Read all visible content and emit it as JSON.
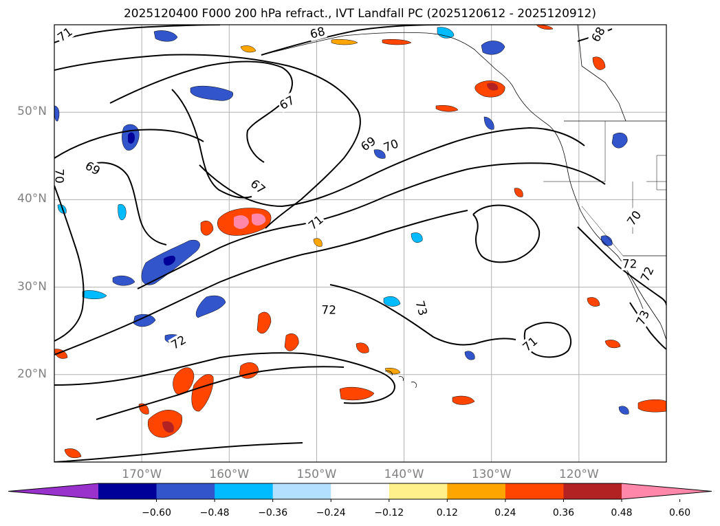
{
  "title": "2025120400 F000 200 hPa refract., IVT Landfall PC (2025120612 - 2025120912)",
  "map": {
    "lon_range": [
      -180,
      -110
    ],
    "lat_range": [
      10,
      60
    ],
    "gridline_color": "#b0b0b0",
    "coastline_color": "#000000"
  },
  "axes": {
    "lat_ticks": [
      {
        "lat": 50,
        "label": "50°N"
      },
      {
        "lat": 40,
        "label": "40°N"
      },
      {
        "lat": 30,
        "label": "30°N"
      },
      {
        "lat": 20,
        "label": "20°N"
      }
    ],
    "lon_ticks": [
      {
        "lon": -170,
        "label": "170°W"
      },
      {
        "lon": -160,
        "label": "160°W"
      },
      {
        "lon": -150,
        "label": "150°W"
      },
      {
        "lon": -140,
        "label": "140°W"
      },
      {
        "lon": -130,
        "label": "130°W"
      },
      {
        "lon": -120,
        "label": "120°W"
      }
    ]
  },
  "contour_labels": [
    {
      "text": "71",
      "lon": -178.8,
      "lat": 58.9,
      "rot": -35
    },
    {
      "text": "68",
      "lon": -149.9,
      "lat": 59.1,
      "rot": -15
    },
    {
      "text": "68",
      "lon": -117.8,
      "lat": 58.9,
      "rot": -60
    },
    {
      "text": "67",
      "lon": -153.4,
      "lat": 51.1,
      "rot": -30
    },
    {
      "text": "69",
      "lon": -175.6,
      "lat": 43.6,
      "rot": 30
    },
    {
      "text": "70",
      "lon": -179.4,
      "lat": 42.7,
      "rot": 90
    },
    {
      "text": "67",
      "lon": -156.7,
      "lat": 41.5,
      "rot": 40
    },
    {
      "text": "69",
      "lon": -144.1,
      "lat": 46.4,
      "rot": -35
    },
    {
      "text": "70",
      "lon": -141.5,
      "lat": 46.2,
      "rot": -20
    },
    {
      "text": "71",
      "lon": -150.1,
      "lat": 37.4,
      "rot": -40
    },
    {
      "text": "72",
      "lon": -148.6,
      "lat": 27.4,
      "rot": 0
    },
    {
      "text": "72",
      "lon": -165.8,
      "lat": 23.7,
      "rot": -30
    },
    {
      "text": "73",
      "lon": -138.0,
      "lat": 27.6,
      "rot": 75
    },
    {
      "text": "71",
      "lon": -125.6,
      "lat": 23.5,
      "rot": -40
    },
    {
      "text": "70",
      "lon": -113.7,
      "lat": 37.9,
      "rot": -55
    },
    {
      "text": "72",
      "lon": -114.2,
      "lat": 32.7,
      "rot": 0
    },
    {
      "text": "72",
      "lon": -112.2,
      "lat": 31.5,
      "rot": -65
    },
    {
      "text": "73",
      "lon": -112.7,
      "lat": 26.5,
      "rot": -65
    }
  ],
  "colorbar": {
    "colors": [
      "#9932cc",
      "#000099",
      "#3355cc",
      "#00bbff",
      "#b3e0ff",
      "#ffffff",
      "#fff08c",
      "#ffa500",
      "#ff4500",
      "#b22222",
      "#ff88aa"
    ],
    "ticks": [
      "−0.60",
      "−0.48",
      "−0.36",
      "−0.24",
      "−0.12",
      "0.12",
      "0.24",
      "0.36",
      "0.48",
      "0.60"
    ]
  }
}
